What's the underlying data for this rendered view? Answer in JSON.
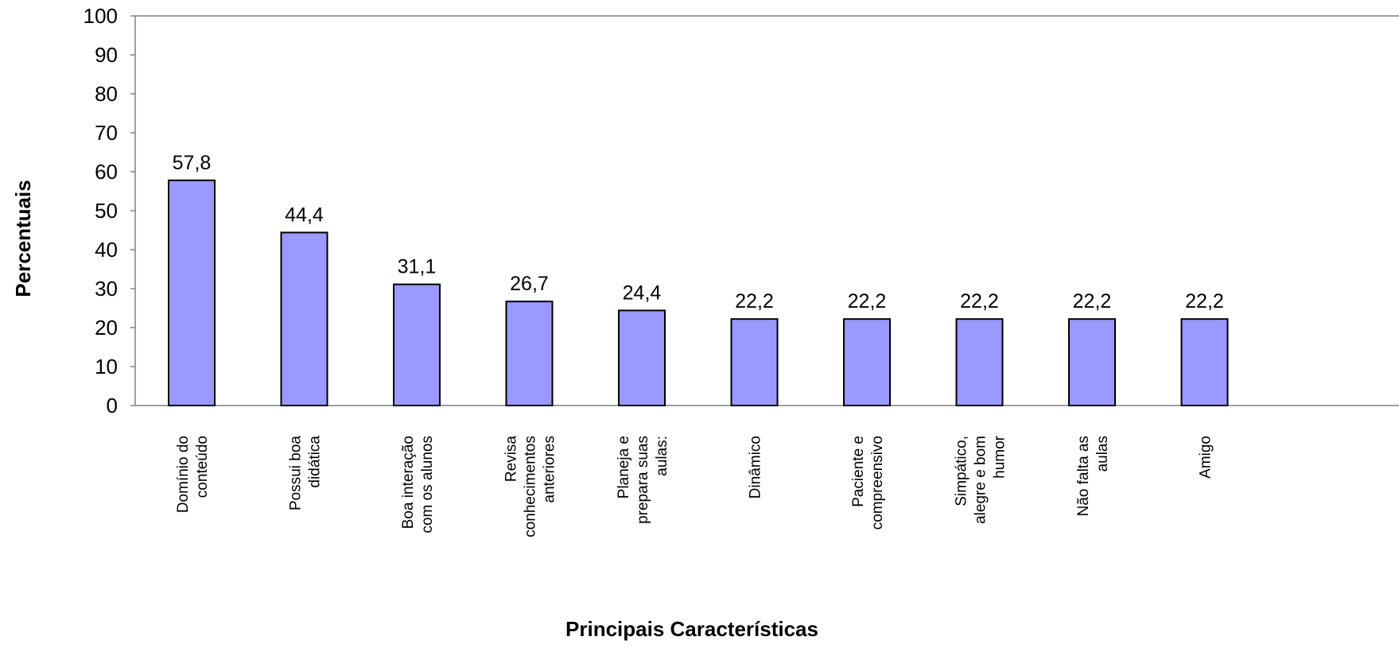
{
  "chart_data": {
    "type": "bar",
    "xlabel": "Principais Características",
    "ylabel": "Percentuais",
    "ylim": [
      0,
      100
    ],
    "yticks": [
      "0",
      "10",
      "20",
      "30",
      "40",
      "50",
      "60",
      "70",
      "80",
      "90",
      "100"
    ],
    "categories": [
      [
        "Domínio do",
        "conteúdo"
      ],
      [
        "Possui boa",
        "didática"
      ],
      [
        "Boa interação",
        "com os alunos"
      ],
      [
        "Revisa",
        "conhecimentos",
        "anteriores"
      ],
      [
        "Planeja e",
        "prepara  suas",
        "aulas:"
      ],
      [
        "Dinâmico"
      ],
      [
        "Paciente e",
        "compreensivo"
      ],
      [
        "Simpático,",
        "alegre e bom",
        "humor"
      ],
      [
        "Não falta as",
        "aulas"
      ],
      [
        "Amigo"
      ]
    ],
    "values": [
      57.8,
      44.4,
      31.1,
      26.7,
      24.4,
      22.2,
      22.2,
      22.2,
      22.2,
      22.2
    ],
    "value_labels": [
      "57,8",
      "44,4",
      "31,1",
      "26,7",
      "24,4",
      "22,2",
      "22,2",
      "22,2",
      "22,2",
      "22,2"
    ],
    "bar_color": "#9999ff",
    "bar_edge_color": "#000000",
    "grid": false,
    "legend": "none"
  }
}
